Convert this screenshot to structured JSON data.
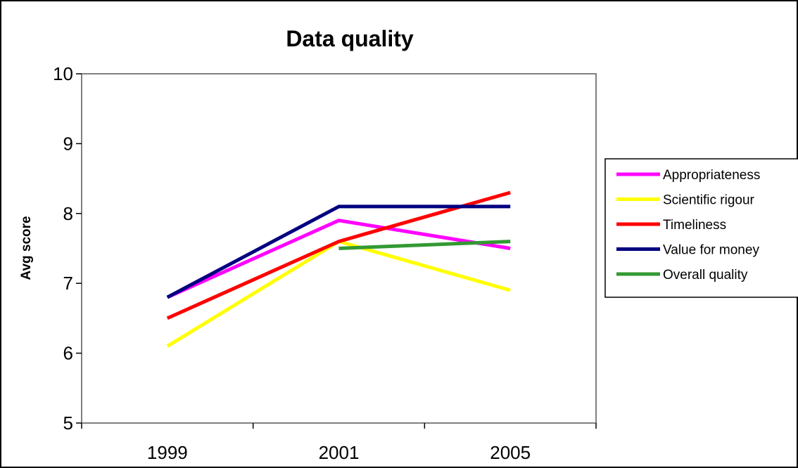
{
  "chart_data": {
    "type": "line",
    "title": "Data quality",
    "xlabel": "",
    "ylabel": "Avg score",
    "categories": [
      "1999",
      "2001",
      "2005"
    ],
    "ylim": [
      5,
      10
    ],
    "yticks": [
      5,
      6,
      7,
      8,
      9,
      10
    ],
    "grid": false,
    "legend_position": "right",
    "series": [
      {
        "name": "Appropriateness",
        "color": "#FF00FF",
        "values": [
          6.8,
          7.9,
          7.5
        ]
      },
      {
        "name": "Scientific rigour",
        "color": "#FFFF00",
        "values": [
          6.1,
          7.6,
          6.9
        ]
      },
      {
        "name": "Timeliness",
        "color": "#FF0000",
        "values": [
          6.5,
          7.6,
          8.3
        ]
      },
      {
        "name": "Value for money",
        "color": "#000080",
        "values": [
          6.8,
          8.1,
          8.1
        ]
      },
      {
        "name": "Overall quality",
        "color": "#339933",
        "values": [
          null,
          7.5,
          7.6
        ]
      }
    ]
  }
}
